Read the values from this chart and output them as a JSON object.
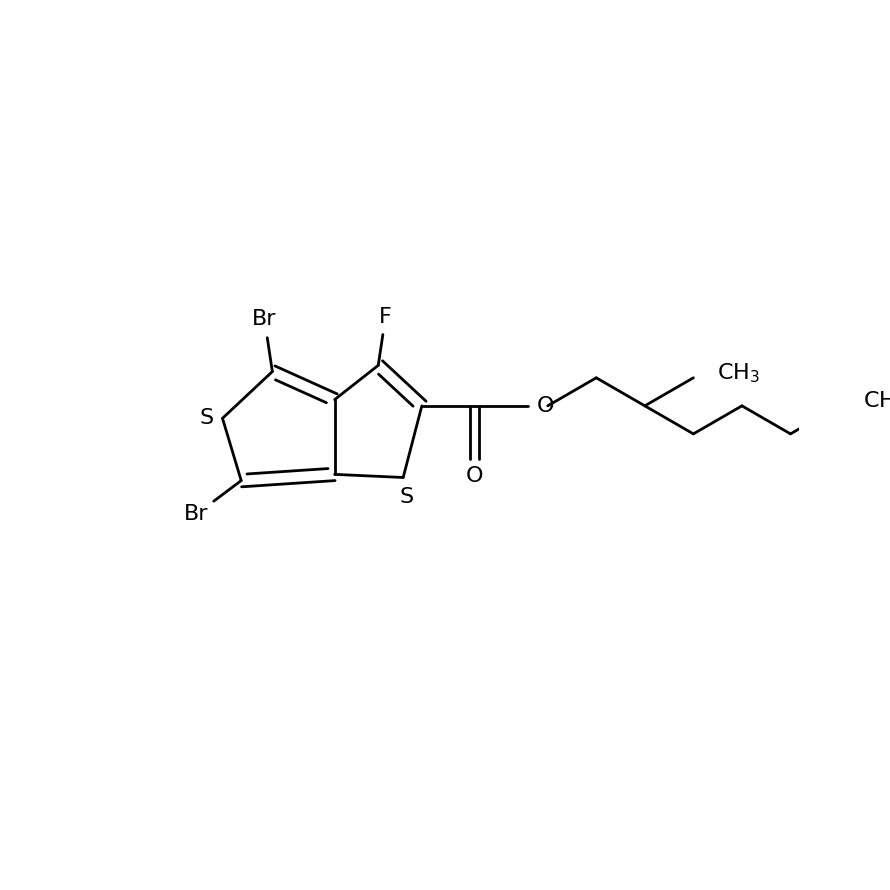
{
  "background_color": "#ffffff",
  "line_color": "#000000",
  "line_width": 2.0,
  "font_size": 16,
  "figsize": [
    8.9,
    8.9
  ],
  "dpi": 100,
  "xlim": [
    -0.5,
    10.5
  ],
  "ylim": [
    -0.5,
    10.5
  ]
}
